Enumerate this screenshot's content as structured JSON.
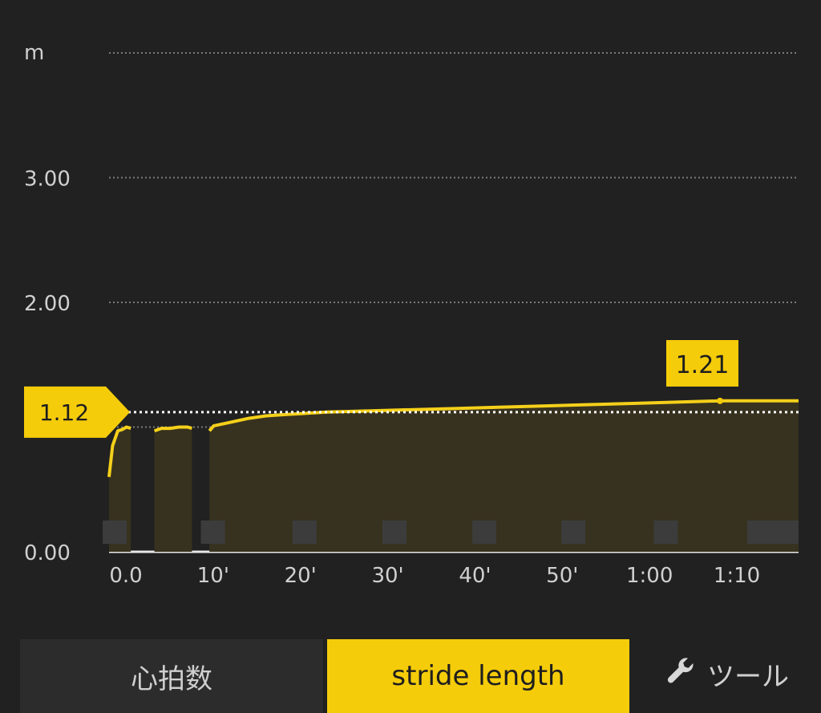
{
  "chart_data": {
    "type": "area",
    "y_unit": "m",
    "y_ticks": [
      "0.00",
      "2.00",
      "3.00"
    ],
    "x_ticks": [
      "0.0",
      "10'",
      "20'",
      "30'",
      "40'",
      "50'",
      "1:00",
      "1:10"
    ],
    "xlim": [
      0,
      79
    ],
    "ylim": [
      0,
      4.0
    ],
    "grid": true,
    "average": {
      "label": "1.12",
      "value": 1.12
    },
    "max": {
      "label": "1.21",
      "value": 1.21,
      "x": 70
    },
    "series": [
      {
        "color": "#f5d01a",
        "segments": [
          {
            "x": [
              0,
              0.4,
              1,
              1.5,
              2,
              2.5
            ],
            "y": [
              0.6,
              0.85,
              0.97,
              0.98,
              1.0,
              0.99
            ]
          },
          {
            "x": [
              5.2,
              6,
              7,
              8,
              9,
              9.5
            ],
            "y": [
              0.97,
              0.99,
              0.99,
              1.0,
              1.0,
              0.99
            ]
          },
          {
            "x": [
              11.5,
              12,
              14,
              16,
              18,
              20,
              25,
              30,
              35,
              40,
              45,
              50,
              55,
              60,
              65,
              70,
              75,
              79
            ],
            "y": [
              0.97,
              1.01,
              1.04,
              1.07,
              1.09,
              1.1,
              1.12,
              1.13,
              1.14,
              1.15,
              1.16,
              1.17,
              1.18,
              1.19,
              1.2,
              1.21,
              1.21,
              1.21
            ]
          }
        ]
      }
    ]
  },
  "tabs": {
    "heart_rate": "心拍数",
    "stride_length": "stride length"
  },
  "tool": {
    "label": "ツール",
    "icon": "wrench-icon"
  },
  "colors": {
    "background": "#212121",
    "accent": "#f5cc0a",
    "fill": "#37321f"
  }
}
